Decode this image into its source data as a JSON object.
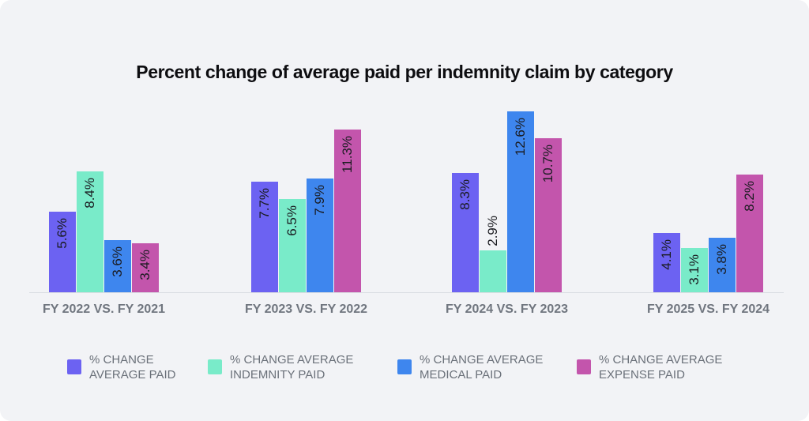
{
  "title": "Percent change of average paid per indemnity claim by category",
  "chart_data": {
    "type": "bar",
    "title": "Percent change of average paid per indemnity claim by category",
    "categories": [
      "FY 2022 VS. FY 2021",
      "FY 2023 VS. FY 2022",
      "FY 2024 VS. FY 2023",
      "FY 2025 VS. FY 2024"
    ],
    "series": [
      {
        "name": "% CHANGE AVERAGE PAID",
        "color": "#6C62F2",
        "values": [
          5.6,
          7.7,
          8.3,
          4.1
        ]
      },
      {
        "name": "% CHANGE AVERAGE INDEMNITY PAID",
        "color": "#79EBC9",
        "values": [
          8.4,
          6.5,
          2.9,
          3.1
        ]
      },
      {
        "name": "% CHANGE AVERAGE MEDICAL PAID",
        "color": "#3E86EE",
        "values": [
          3.6,
          7.9,
          12.6,
          3.8
        ]
      },
      {
        "name": "% CHANGE AVERAGE EXPENSE PAID",
        "color": "#C355AC",
        "values": [
          3.4,
          11.3,
          10.7,
          8.2
        ]
      }
    ],
    "value_suffix": "%",
    "xlabel": "",
    "ylabel": "",
    "ylim": [
      0,
      13
    ],
    "grid": false,
    "legend_position": "bottom",
    "label_rotation": -90,
    "background_color": "#F2F3F6"
  },
  "legend": {
    "items": [
      {
        "lines": [
          "% CHANGE",
          "AVERAGE PAID"
        ],
        "color": "#6C62F2"
      },
      {
        "lines": [
          "% CHANGE AVERAGE",
          "INDEMNITY PAID"
        ],
        "color": "#79EBC9"
      },
      {
        "lines": [
          "% CHANGE AVERAGE",
          "MEDICAL PAID"
        ],
        "color": "#3E86EE"
      },
      {
        "lines": [
          "% CHANGE AVERAGE",
          "EXPENSE PAID"
        ],
        "color": "#C355AC"
      }
    ]
  }
}
